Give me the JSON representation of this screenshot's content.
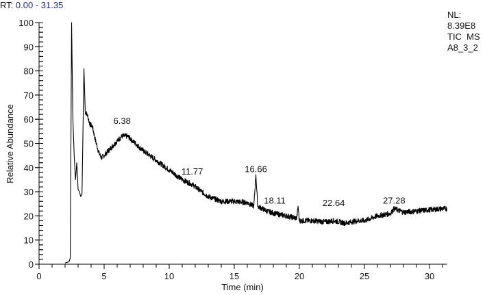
{
  "header": {
    "rt_label": "RT:",
    "rt_range": "0.00 - 31.35"
  },
  "info": {
    "nl_label": "NL:",
    "nl_value": "8.39E8",
    "scan_type": "TIC  MS",
    "sample": "A8_3_2"
  },
  "colors": {
    "trace": "#000000",
    "rt_range_text": "#1c2a80",
    "axis": "#000000"
  },
  "chart_data": {
    "type": "line",
    "title": "RT: 0.00 - 31.35",
    "xlabel": "Time (min)",
    "ylabel": "Relative Abundance",
    "xlim": [
      0,
      31.35
    ],
    "ylim": [
      0,
      100
    ],
    "x_ticks": [
      0,
      5,
      10,
      15,
      20,
      25,
      30
    ],
    "y_ticks": [
      0,
      10,
      20,
      30,
      40,
      50,
      60,
      70,
      80,
      90,
      100
    ],
    "grid": false,
    "legend": "none",
    "annotations": {
      "NL": "8.39E8",
      "trace": "TIC MS",
      "sample": "A8_3_2"
    },
    "peak_labels": [
      {
        "rt": "6.38",
        "x": 6.38,
        "y": 57
      },
      {
        "rt": "11.77",
        "x": 11.77,
        "y": 36
      },
      {
        "rt": "16.66",
        "x": 16.66,
        "y": 37
      },
      {
        "rt": "18.11",
        "x": 18.11,
        "y": 24
      },
      {
        "rt": "22.64",
        "x": 22.64,
        "y": 23
      },
      {
        "rt": "27.28",
        "x": 27.28,
        "y": 24
      }
    ],
    "series": [
      {
        "name": "TIC MS A8_3_2",
        "points": [
          [
            2.0,
            0.5
          ],
          [
            2.3,
            1.0
          ],
          [
            2.4,
            2.5
          ],
          [
            2.5,
            100
          ],
          [
            2.6,
            60
          ],
          [
            2.7,
            45
          ],
          [
            2.8,
            35
          ],
          [
            2.9,
            42
          ],
          [
            3.0,
            31
          ],
          [
            3.1,
            30
          ],
          [
            3.2,
            28
          ],
          [
            3.3,
            29
          ],
          [
            3.45,
            81
          ],
          [
            3.55,
            63
          ],
          [
            3.7,
            62
          ],
          [
            3.9,
            58
          ],
          [
            4.1,
            57
          ],
          [
            4.3,
            52
          ],
          [
            4.6,
            46
          ],
          [
            4.8,
            44
          ],
          [
            5.0,
            45
          ],
          [
            5.5,
            48
          ],
          [
            6.0,
            51
          ],
          [
            6.38,
            53
          ],
          [
            6.8,
            53
          ],
          [
            7.2,
            51
          ],
          [
            8.0,
            47
          ],
          [
            9.0,
            43
          ],
          [
            10.0,
            39
          ],
          [
            11.0,
            35
          ],
          [
            11.77,
            33
          ],
          [
            12.5,
            30
          ],
          [
            13.0,
            28
          ],
          [
            14.0,
            26
          ],
          [
            15.0,
            26
          ],
          [
            16.0,
            25.5
          ],
          [
            16.5,
            24
          ],
          [
            16.66,
            37
          ],
          [
            16.8,
            24
          ],
          [
            17.5,
            22
          ],
          [
            18.11,
            21
          ],
          [
            19.0,
            20
          ],
          [
            19.8,
            19
          ],
          [
            19.9,
            24
          ],
          [
            20.0,
            18
          ],
          [
            21.0,
            18
          ],
          [
            22.0,
            17.5
          ],
          [
            22.64,
            18
          ],
          [
            23.5,
            17
          ],
          [
            24.5,
            18
          ],
          [
            25.0,
            18
          ],
          [
            26.0,
            20
          ],
          [
            27.0,
            21
          ],
          [
            27.28,
            23
          ],
          [
            28.0,
            21.5
          ],
          [
            29.0,
            22
          ],
          [
            30.0,
            22.5
          ],
          [
            31.0,
            23
          ],
          [
            31.35,
            23
          ]
        ]
      }
    ]
  }
}
